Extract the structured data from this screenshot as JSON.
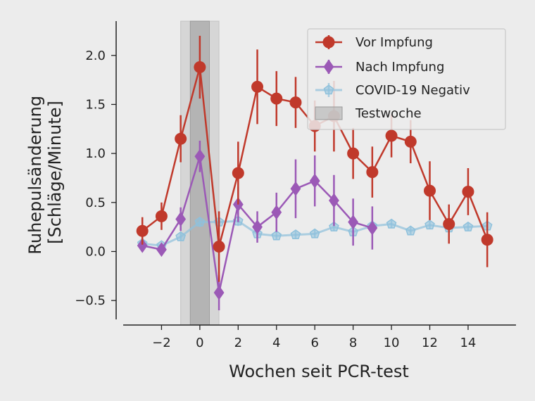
{
  "chart_data": {
    "type": "line",
    "xlabel": "Wochen seit PCR-test",
    "ylabel_lines": [
      "Ruhepulsänderung",
      "[Schläge/Minute]"
    ],
    "xlim": [
      -4,
      16.5
    ],
    "ylim": [
      -0.75,
      2.35
    ],
    "xticks": [
      -2,
      0,
      2,
      4,
      6,
      8,
      10,
      12,
      14
    ],
    "xtick_labels": [
      "−2",
      "0",
      "2",
      "4",
      "6",
      "8",
      "10",
      "12",
      "14"
    ],
    "yticks": [
      -0.5,
      0.0,
      0.5,
      1.0,
      1.5,
      2.0
    ],
    "ytick_labels": [
      "−0.5",
      "0.0",
      "0.5",
      "1.0",
      "1.5",
      "2.0"
    ],
    "grid": false,
    "legend_position": "top-right",
    "test_week": {
      "label": "Testwoche",
      "inner_range": [
        -0.5,
        0.5
      ],
      "outer_range": [
        -1,
        1
      ],
      "color": "#b0b0b0"
    },
    "series": [
      {
        "name": "Vor Impfung",
        "color": "#c0392b",
        "marker": "circle",
        "x": [
          -3,
          -2,
          -1,
          0,
          1,
          2,
          3,
          4,
          5,
          6,
          7,
          8,
          9,
          10,
          11,
          12,
          13,
          14,
          15
        ],
        "y": [
          0.21,
          0.36,
          1.15,
          1.88,
          0.05,
          0.8,
          1.68,
          1.56,
          1.52,
          1.28,
          1.38,
          1.0,
          0.81,
          1.18,
          1.12,
          0.62,
          0.28,
          0.61,
          0.12
        ],
        "err": [
          0.14,
          0.14,
          0.24,
          0.32,
          0.36,
          0.32,
          0.38,
          0.28,
          0.26,
          0.26,
          0.36,
          0.26,
          0.26,
          0.22,
          0.22,
          0.3,
          0.2,
          0.24,
          0.28
        ]
      },
      {
        "name": "Nach Impfung",
        "color": "#9b59b6",
        "marker": "diamond",
        "x": [
          -3,
          -2,
          -1,
          0,
          1,
          2,
          3,
          4,
          5,
          6,
          7,
          8,
          9
        ],
        "y": [
          0.06,
          0.02,
          0.33,
          0.97,
          -0.42,
          0.48,
          0.25,
          0.4,
          0.64,
          0.72,
          0.52,
          0.3,
          0.24
        ],
        "err": [
          0.06,
          0.06,
          0.12,
          0.16,
          0.18,
          0.18,
          0.16,
          0.2,
          0.3,
          0.26,
          0.26,
          0.24,
          0.22
        ]
      },
      {
        "name": "COVID-19 Negativ",
        "color": "#8ec1dc",
        "marker": "pentagon",
        "x": [
          -3,
          -2,
          -1,
          0,
          1,
          2,
          3,
          4,
          5,
          6,
          7,
          8,
          9,
          10,
          11,
          12,
          13,
          14,
          15
        ],
        "y": [
          0.08,
          0.06,
          0.15,
          0.3,
          0.3,
          0.31,
          0.18,
          0.16,
          0.17,
          0.18,
          0.25,
          0.2,
          0.26,
          0.28,
          0.21,
          0.27,
          0.24,
          0.25,
          0.26
        ],
        "err": [
          0.03,
          0.03,
          0.04,
          0.05,
          0.05,
          0.05,
          0.04,
          0.04,
          0.04,
          0.04,
          0.04,
          0.04,
          0.04,
          0.04,
          0.04,
          0.04,
          0.04,
          0.04,
          0.04
        ]
      }
    ]
  }
}
